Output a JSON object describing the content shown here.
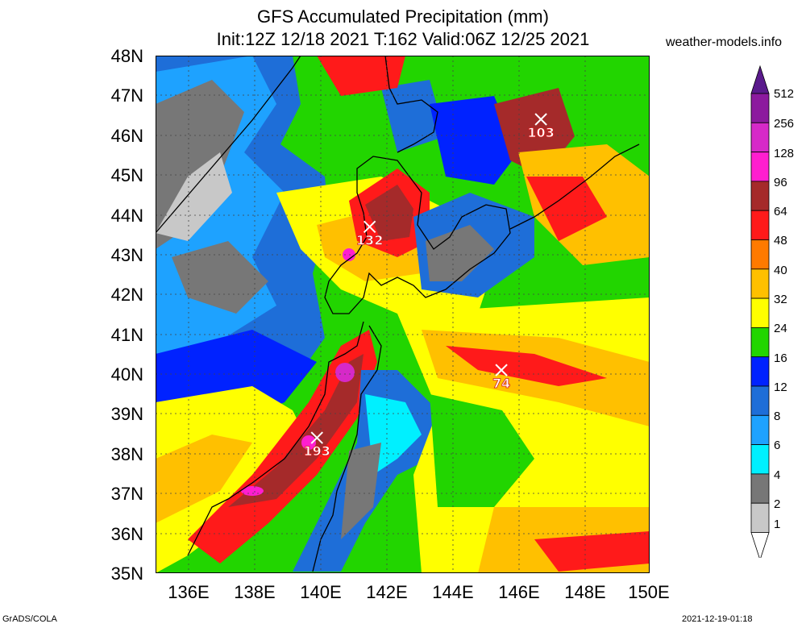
{
  "title": {
    "line1": "GFS Accumulated Precipitation (mm)",
    "line2": "Init:12Z 12/18 2021 T:162 Valid:06Z 12/25 2021"
  },
  "source": "weather-models.info",
  "footer": {
    "left": "GrADS/COLA",
    "right": "2021-12-19-01:18"
  },
  "axes": {
    "lat_labels": [
      "48N",
      "47N",
      "46N",
      "45N",
      "44N",
      "43N",
      "42N",
      "41N",
      "40N",
      "39N",
      "38N",
      "37N",
      "36N",
      "35N"
    ],
    "lon_labels": [
      "136E",
      "138E",
      "140E",
      "142E",
      "144E",
      "146E",
      "148E",
      "150E"
    ],
    "lat_range": [
      35,
      48
    ],
    "lon_range": [
      135,
      150
    ],
    "grid": true
  },
  "colorbar": {
    "levels": [
      "512",
      "256",
      "128",
      "96",
      "64",
      "48",
      "40",
      "32",
      "24",
      "16",
      "12",
      "8",
      "6",
      "4",
      "2",
      "1"
    ],
    "colors": {
      "512": "#5a1a8c",
      "256": "#8c1a9e",
      "128": "#d629c8",
      "96": "#ff1ecf",
      "64": "#a52a2a",
      "48": "#ff1a1a",
      "40": "#ff7a00",
      "32": "#ffc000",
      "24": "#ffff00",
      "16": "#22d500",
      "12": "#0022ff",
      "8": "#1e6ed8",
      "6": "#1ea2ff",
      "4": "#00f0ff",
      "2": "#777777",
      "1": "#c8c8c8"
    }
  },
  "markers": [
    {
      "label": "132",
      "lat": 43.7,
      "lon": 141.5
    },
    {
      "label": "103",
      "lat": 46.4,
      "lon": 146.7
    },
    {
      "label": "74",
      "lat": 40.1,
      "lon": 145.5
    },
    {
      "label": "193",
      "lat": 38.4,
      "lon": 139.9
    }
  ]
}
